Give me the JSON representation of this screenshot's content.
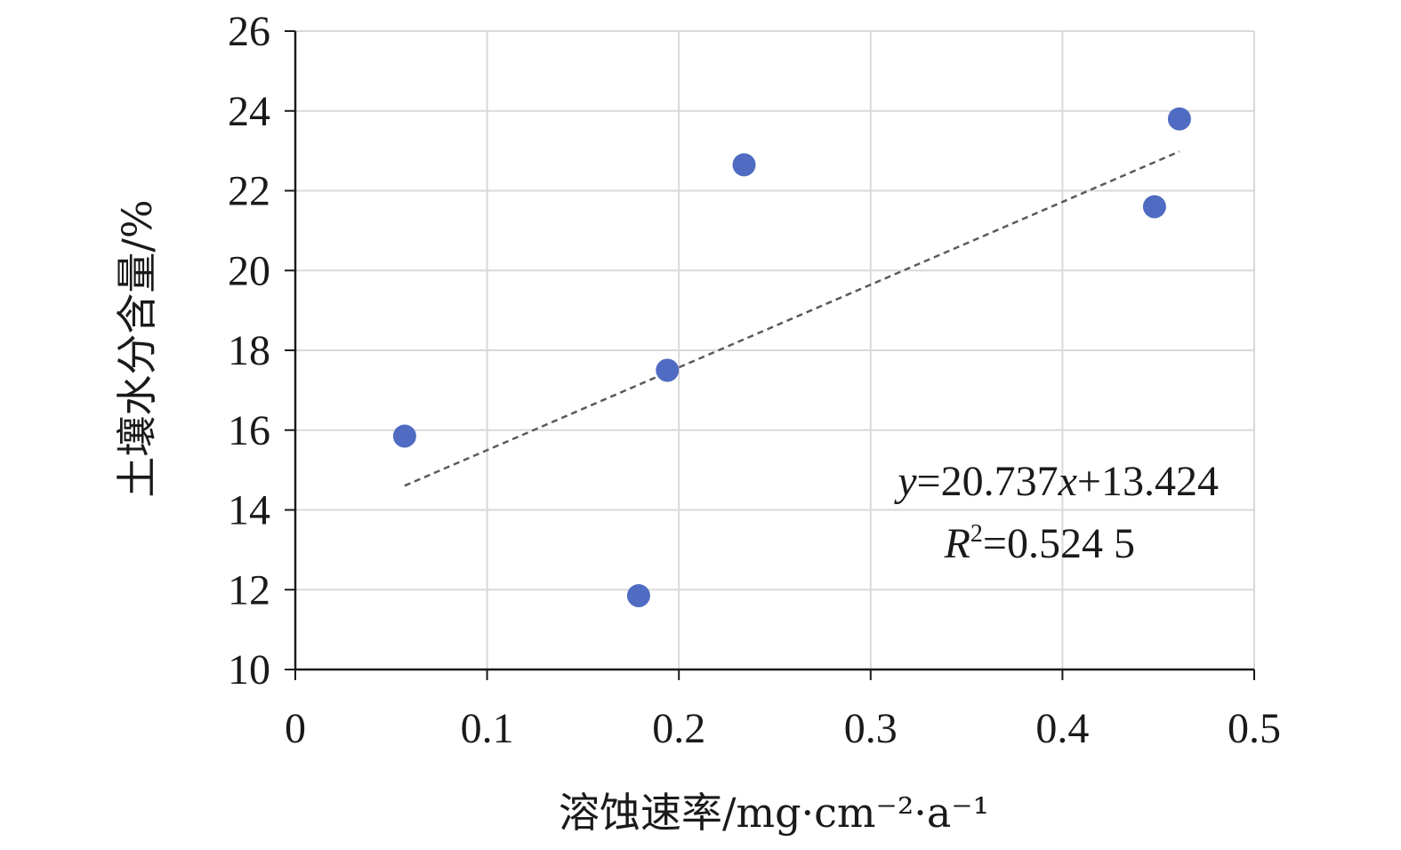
{
  "chart_data": {
    "type": "scatter",
    "xlabel": "溶蚀速率/mg·cm⁻²·a⁻¹",
    "ylabel": "土壤水分含量/%",
    "xlim": [
      0,
      0.5
    ],
    "ylim": [
      10,
      26
    ],
    "x_ticks": [
      "0",
      "0.1",
      "0.2",
      "0.3",
      "0.4",
      "0.5"
    ],
    "y_ticks": [
      "10",
      "12",
      "14",
      "16",
      "18",
      "20",
      "22",
      "24",
      "26"
    ],
    "grid": true,
    "legend": "none",
    "points": [
      {
        "x": 0.057,
        "y": 15.85
      },
      {
        "x": 0.179,
        "y": 11.85
      },
      {
        "x": 0.194,
        "y": 17.5
      },
      {
        "x": 0.234,
        "y": 22.65
      },
      {
        "x": 0.448,
        "y": 21.6
      },
      {
        "x": 0.461,
        "y": 23.8
      }
    ],
    "trendline": {
      "style": "dashed",
      "slope": 20.737,
      "intercept": 13.424,
      "x_range": [
        0.057,
        0.461
      ]
    },
    "annotation": {
      "equation_var_y": "y",
      "equation_mid": "=20.737",
      "equation_var_x": "x",
      "equation_tail": "+13.424",
      "r2_var": "R",
      "r2_sup": "2",
      "r2_value": "=0.524 5"
    },
    "colors": {
      "point": "#4f6bc2",
      "trendline": "#5a5a5a",
      "grid": "#d9d9d9",
      "axis": "#1a1a1a"
    }
  }
}
